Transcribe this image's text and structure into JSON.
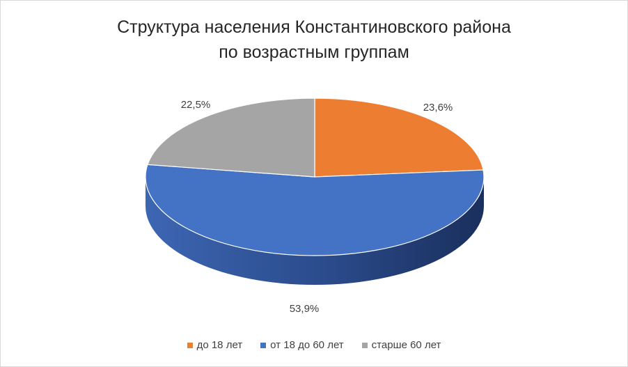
{
  "chart_data": {
    "type": "pie",
    "style": "3d",
    "title": [
      "Структура  населения Константиновского района",
      "по возрастным группам"
    ],
    "legend_position": "bottom",
    "series": [
      {
        "name": "до 18 лет",
        "value": 23.6,
        "label": "23,6%",
        "color": "#ED7D31"
      },
      {
        "name": "от 18 до 60 лет",
        "value": 53.9,
        "label": "53,9%",
        "color": "#4472C4"
      },
      {
        "name": "старше 60 лет",
        "value": 22.5,
        "label": "22,5%",
        "color": "#A5A5A5"
      }
    ]
  }
}
